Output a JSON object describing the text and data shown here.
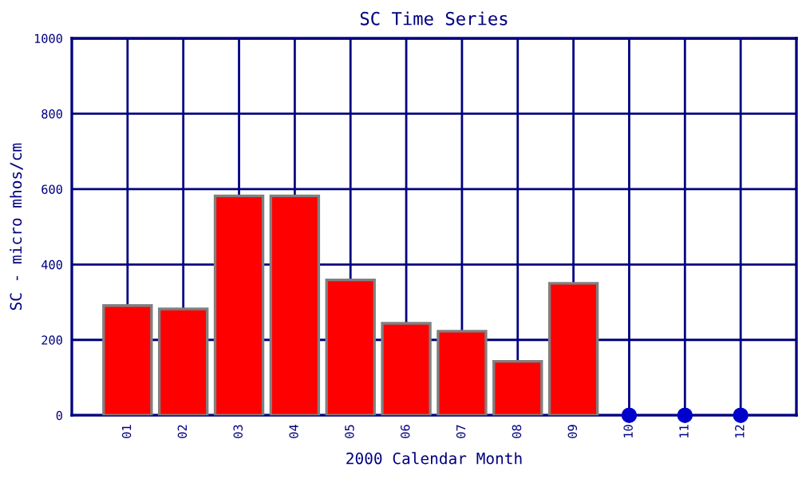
{
  "chart_data": {
    "type": "bar",
    "title": "SC Time Series",
    "xlabel": "2000 Calendar Month",
    "ylabel": "SC - micro mhos/cm",
    "categories": [
      "01",
      "02",
      "03",
      "04",
      "05",
      "06",
      "07",
      "08",
      "09",
      "10",
      "11",
      "12"
    ],
    "series": [
      {
        "color": "#ff0000",
        "values": [
          291,
          282,
          582,
          582,
          359,
          244,
          223,
          143,
          350,
          null,
          null,
          null
        ]
      },
      {
        "type": "scatter",
        "color": "#0000cc",
        "marker": "circle",
        "values": [
          null,
          null,
          null,
          null,
          null,
          null,
          null,
          null,
          null,
          0,
          0,
          0
        ]
      }
    ],
    "ylim": [
      0,
      1000
    ],
    "yticks": [
      0,
      200,
      400,
      600,
      800,
      1000
    ],
    "grid": true
  }
}
